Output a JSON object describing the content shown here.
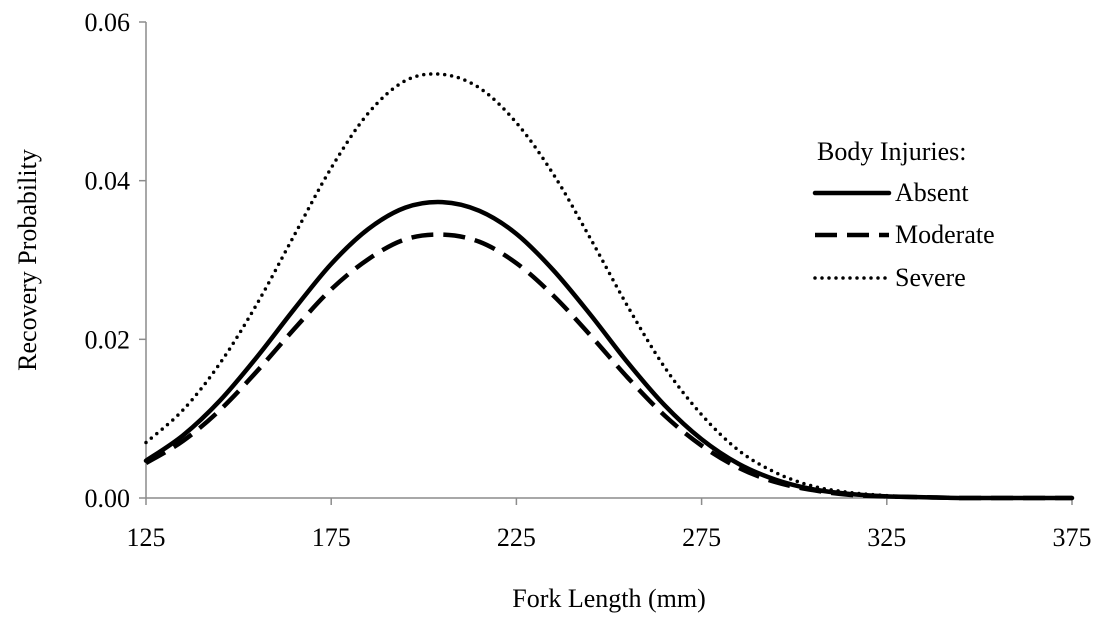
{
  "chart_data": {
    "type": "line",
    "title": "",
    "xlabel": "Fork Length (mm)",
    "ylabel": "Recovery Probability",
    "xlim": [
      125,
      375
    ],
    "ylim": [
      0,
      0.06
    ],
    "x_ticks": [
      125,
      175,
      225,
      275,
      325,
      375
    ],
    "x_tick_labels": [
      "125",
      "175",
      "225",
      "275",
      "325",
      "375"
    ],
    "y_ticks": [
      0,
      0.02,
      0.04,
      0.06
    ],
    "y_tick_labels": [
      "0.00",
      "0.02",
      "0.04",
      "0.06"
    ],
    "grid": false,
    "legend": {
      "title": "Body Injuries:",
      "placement": "right"
    },
    "x": [
      125,
      135,
      145,
      155,
      165,
      175,
      185,
      195,
      205,
      215,
      225,
      235,
      245,
      255,
      265,
      275,
      285,
      295,
      305,
      315,
      325,
      335,
      345,
      355,
      365,
      375
    ],
    "series": [
      {
        "name": "Absent",
        "style": "solid",
        "values": [
          0.0047,
          0.0079,
          0.0123,
          0.0178,
          0.0238,
          0.0295,
          0.0339,
          0.0366,
          0.0373,
          0.0362,
          0.0333,
          0.0287,
          0.0231,
          0.0171,
          0.0117,
          0.0074,
          0.0043,
          0.0023,
          0.0011,
          0.0005,
          0.0002,
          0.0001,
          0.0,
          0.0,
          0.0,
          0.0
        ]
      },
      {
        "name": "Moderate",
        "style": "dashed",
        "values": [
          0.0044,
          0.0072,
          0.0111,
          0.016,
          0.0213,
          0.0263,
          0.0301,
          0.0326,
          0.0332,
          0.0323,
          0.0296,
          0.0255,
          0.0205,
          0.0152,
          0.0104,
          0.0066,
          0.0038,
          0.002,
          0.001,
          0.0004,
          0.0002,
          0.0001,
          0.0,
          0.0,
          0.0,
          0.0
        ]
      },
      {
        "name": "Severe",
        "style": "dotted",
        "values": [
          0.007,
          0.0111,
          0.017,
          0.0245,
          0.0331,
          0.0416,
          0.0485,
          0.0526,
          0.0534,
          0.0517,
          0.0473,
          0.0408,
          0.0327,
          0.0242,
          0.0165,
          0.0105,
          0.006,
          0.0032,
          0.0015,
          0.0007,
          0.0003,
          0.0001,
          0.0,
          0.0,
          0.0,
          0.0
        ]
      }
    ]
  }
}
